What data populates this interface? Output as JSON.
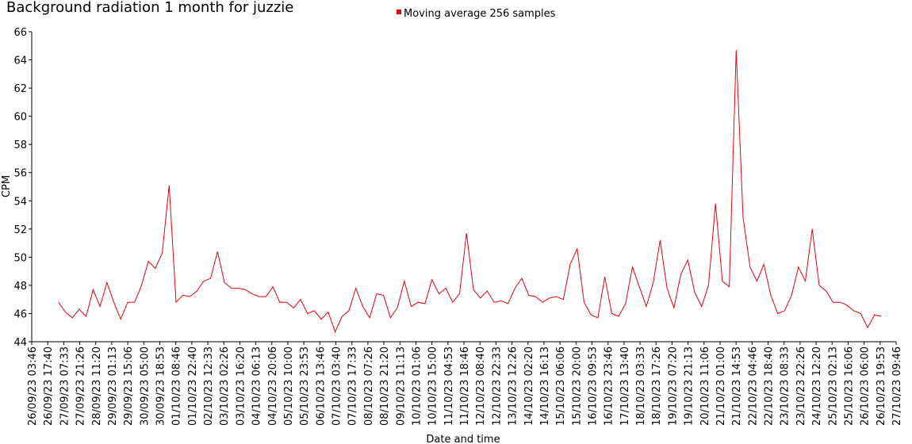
{
  "chart_data": {
    "type": "line",
    "title": "Background radiation 1 month for juzzie",
    "xlabel": "Date and time",
    "ylabel": "CPM",
    "grid": false,
    "legend": "top",
    "ylim": [
      44,
      66
    ],
    "yticks": [
      44,
      46,
      48,
      50,
      52,
      54,
      56,
      58,
      60,
      62,
      64,
      66
    ],
    "xlim": [
      "26/09/23 03:46",
      "27/10/23 09:46"
    ],
    "xticks": [
      "26/09/23 03:46",
      "26/09/23 17:40",
      "27/09/23 07:33",
      "27/09/23 21:26",
      "28/09/23 11:20",
      "29/09/23 01:13",
      "29/09/23 15:06",
      "30/09/23 05:00",
      "30/09/23 18:53",
      "01/10/23 08:46",
      "01/10/23 22:40",
      "02/10/23 12:33",
      "03/10/23 02:26",
      "03/10/23 16:20",
      "04/10/23 06:13",
      "04/10/23 20:06",
      "05/10/23 10:00",
      "05/10/23 23:53",
      "06/10/23 13:46",
      "07/10/23 03:40",
      "07/10/23 17:33",
      "08/10/23 07:26",
      "08/10/23 21:20",
      "09/10/23 11:13",
      "10/10/23 01:06",
      "10/10/23 15:00",
      "11/10/23 04:53",
      "11/10/23 18:46",
      "12/10/23 08:40",
      "12/10/23 22:33",
      "13/10/23 12:26",
      "14/10/23 02:20",
      "14/10/23 16:13",
      "15/10/23 06:06",
      "15/10/23 20:00",
      "16/10/23 09:53",
      "16/10/23 23:46",
      "17/10/23 13:40",
      "18/10/23 03:33",
      "18/10/23 17:26",
      "19/10/23 07:20",
      "19/10/23 21:13",
      "20/10/23 11:06",
      "21/10/23 01:00",
      "21/10/23 14:53",
      "22/10/23 04:46",
      "22/10/23 18:40",
      "23/10/23 08:33",
      "23/10/23 22:26",
      "24/10/23 12:20",
      "25/10/23 02:13",
      "25/10/23 16:06",
      "26/10/23 06:00",
      "26/10/23 19:53",
      "27/10/23 09:46"
    ],
    "x": [
      "27/09/23 03:00",
      "27/09/23 09:00",
      "27/09/23 15:00",
      "27/09/23 21:00",
      "28/09/23 03:00",
      "28/09/23 09:00",
      "28/09/23 15:00",
      "28/09/23 21:00",
      "29/09/23 03:00",
      "29/09/23 09:00",
      "29/09/23 15:00",
      "29/09/23 21:00",
      "30/09/23 03:00",
      "30/09/23 09:00",
      "30/09/23 15:00",
      "30/09/23 21:00",
      "01/10/23 03:00",
      "01/10/23 09:00",
      "01/10/23 15:00",
      "01/10/23 21:00",
      "02/10/23 03:00",
      "02/10/23 09:00",
      "02/10/23 15:00",
      "02/10/23 21:00",
      "03/10/23 03:00",
      "03/10/23 09:00",
      "03/10/23 15:00",
      "03/10/23 21:00",
      "04/10/23 03:00",
      "04/10/23 09:00",
      "04/10/23 15:00",
      "04/10/23 21:00",
      "05/10/23 03:00",
      "05/10/23 09:00",
      "05/10/23 15:00",
      "05/10/23 21:00",
      "06/10/23 03:00",
      "06/10/23 09:00",
      "06/10/23 15:00",
      "06/10/23 21:00",
      "07/10/23 03:00",
      "07/10/23 09:00",
      "07/10/23 15:00",
      "07/10/23 21:00",
      "08/10/23 03:00",
      "08/10/23 09:00",
      "08/10/23 15:00",
      "08/10/23 21:00",
      "09/10/23 03:00",
      "09/10/23 09:00",
      "09/10/23 15:00",
      "09/10/23 21:00",
      "10/10/23 03:00",
      "10/10/23 09:00",
      "10/10/23 15:00",
      "10/10/23 21:00",
      "11/10/23 03:00",
      "11/10/23 09:00",
      "11/10/23 15:00",
      "11/10/23 21:00",
      "12/10/23 03:00",
      "12/10/23 09:00",
      "12/10/23 15:00",
      "12/10/23 21:00",
      "13/10/23 03:00",
      "13/10/23 09:00",
      "13/10/23 15:00",
      "13/10/23 21:00",
      "14/10/23 03:00",
      "14/10/23 09:00",
      "14/10/23 15:00",
      "14/10/23 21:00",
      "15/10/23 03:00",
      "15/10/23 09:00",
      "15/10/23 15:00",
      "15/10/23 21:00",
      "16/10/23 03:00",
      "16/10/23 09:00",
      "16/10/23 15:00",
      "16/10/23 21:00",
      "17/10/23 03:00",
      "17/10/23 09:00",
      "17/10/23 15:00",
      "17/10/23 21:00",
      "18/10/23 03:00",
      "18/10/23 09:00",
      "18/10/23 15:00",
      "18/10/23 21:00",
      "19/10/23 03:00",
      "19/10/23 09:00",
      "19/10/23 15:00",
      "19/10/23 21:00",
      "20/10/23 03:00",
      "20/10/23 09:00",
      "20/10/23 15:00",
      "20/10/23 21:00",
      "21/10/23 03:00",
      "21/10/23 09:00",
      "21/10/23 15:00",
      "21/10/23 21:00",
      "22/10/23 03:00",
      "22/10/23 09:00",
      "22/10/23 15:00",
      "22/10/23 21:00",
      "23/10/23 03:00",
      "23/10/23 09:00",
      "23/10/23 15:00",
      "23/10/23 21:00",
      "24/10/23 03:00",
      "24/10/23 09:00",
      "24/10/23 15:00",
      "24/10/23 21:00",
      "25/10/23 03:00",
      "25/10/23 09:00",
      "25/10/23 15:00",
      "25/10/23 21:00",
      "26/10/23 03:00",
      "26/10/23 09:00",
      "26/10/23 15:00",
      "26/10/23 21:00"
    ],
    "series": [
      {
        "name": "Moving average 256 samples",
        "color": "#e8000b",
        "values": [
          46.8,
          46.1,
          45.7,
          46.3,
          45.8,
          47.7,
          46.5,
          48.2,
          46.8,
          45.6,
          46.8,
          46.8,
          48.0,
          49.7,
          49.2,
          50.3,
          55.1,
          46.8,
          47.3,
          47.2,
          47.6,
          48.3,
          48.5,
          50.4,
          48.2,
          47.8,
          47.8,
          47.7,
          47.4,
          47.2,
          47.2,
          47.9,
          46.8,
          46.8,
          46.4,
          47.0,
          46.0,
          46.2,
          45.6,
          46.1,
          44.7,
          45.8,
          46.2,
          47.8,
          46.5,
          45.7,
          47.4,
          47.3,
          45.7,
          46.4,
          48.3,
          46.5,
          46.8,
          46.7,
          48.4,
          47.4,
          47.8,
          46.8,
          47.4,
          51.7,
          47.7,
          47.1,
          47.6,
          46.8,
          46.9,
          46.7,
          47.8,
          48.5,
          47.3,
          47.2,
          46.8,
          47.1,
          47.2,
          47.0,
          49.5,
          50.6,
          46.8,
          45.9,
          45.7,
          48.6,
          46.0,
          45.8,
          46.7,
          49.3,
          47.9,
          46.5,
          48.2,
          51.2,
          47.8,
          46.4,
          48.8,
          49.8,
          47.5,
          46.5,
          48.0,
          53.8,
          48.3,
          47.9,
          64.7,
          52.8,
          49.3,
          48.3,
          49.5,
          47.3,
          46.0,
          46.2,
          47.3,
          49.3,
          48.3,
          52.0,
          48.0,
          47.6,
          46.8,
          46.8,
          46.6,
          46.2,
          46.0,
          45.0,
          45.9,
          45.8
        ]
      }
    ]
  }
}
